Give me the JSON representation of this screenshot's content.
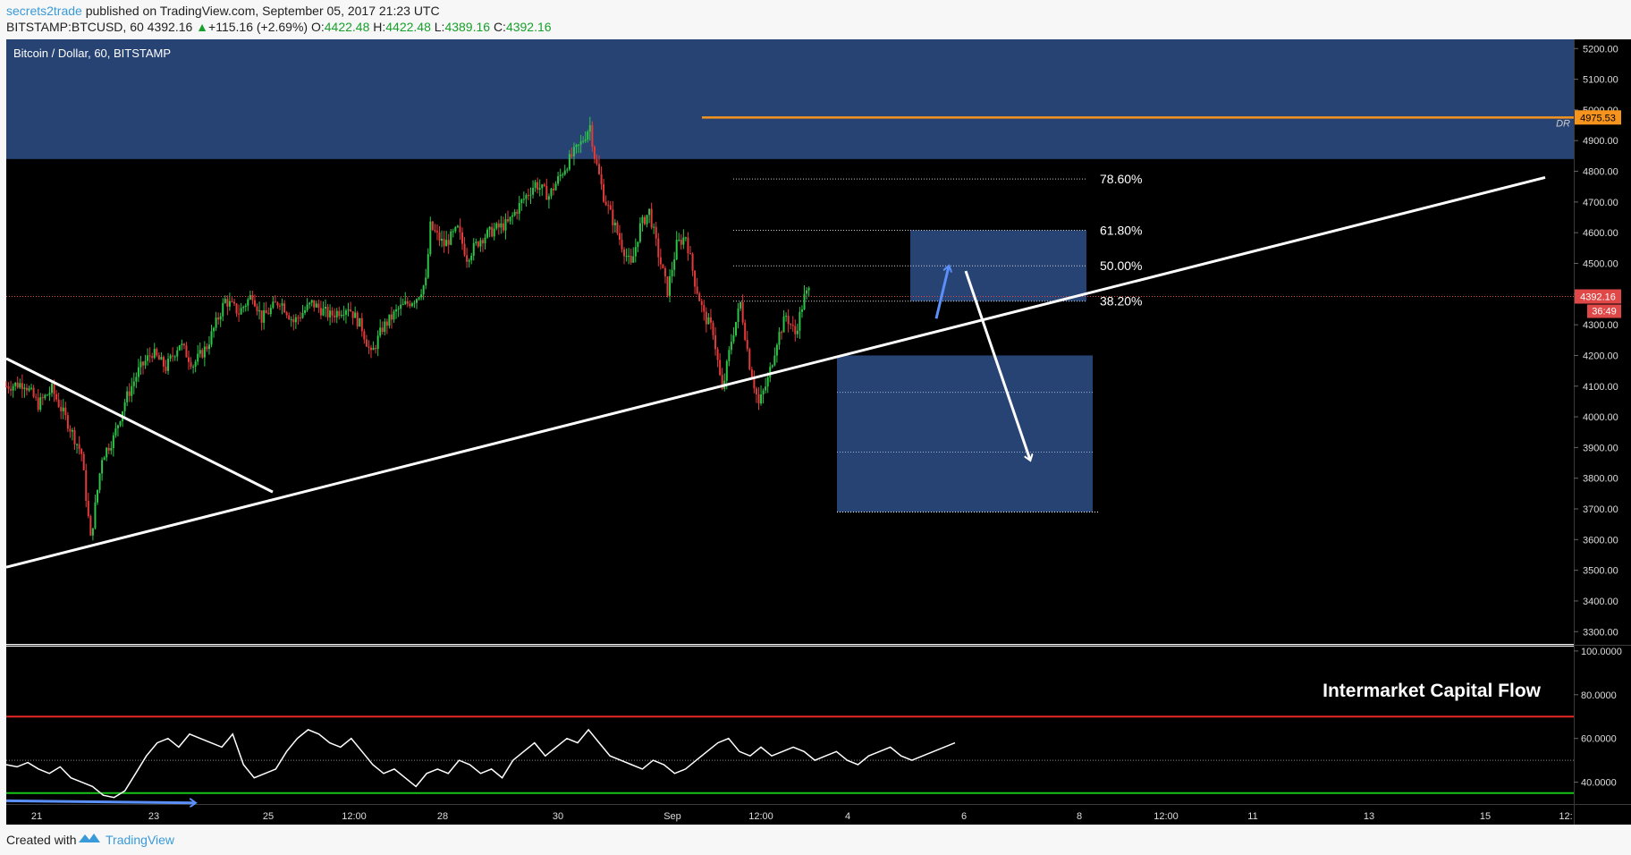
{
  "header": {
    "author": "secrets2trade",
    "published_text": "published on TradingView.com, September 05, 2017 21:23 UTC",
    "symbol": "BITSTAMP:BTCUSD, 60",
    "last": "4392.16",
    "change_arrow": "▲",
    "change": "+115.16 (+2.69%)",
    "o_label": "O:",
    "o_value": "4422.48",
    "h_label": "H:",
    "h_value": "4422.48",
    "l_label": "L:",
    "l_value": "4389.16",
    "c_label": "C:",
    "c_value": "4392.16"
  },
  "footer": {
    "created_with": "Created with",
    "brand": "TradingView"
  },
  "colors": {
    "background": "#000000",
    "zone": "#2a4a80",
    "resistance_line": "#f7941d",
    "support_line": "#17c417",
    "overbought_line": "#e82727",
    "price_badge": "#e04848",
    "blue_arrow": "#5b8ff9",
    "white_lines": "#ffffff"
  },
  "chart_data": [
    {
      "type": "candlestick",
      "title": "Bitcoin / Dollar, 60, BITSTAMP",
      "x_ticks": [
        "21",
        "23",
        "25",
        "12:00",
        "28",
        "30",
        "Sep",
        "12:00",
        "4",
        "6",
        "8",
        "12:00",
        "11",
        "13",
        "15",
        "12:"
      ],
      "y_ticks": [
        "5200.00",
        "5100.00",
        "5000.00",
        "4900.00",
        "4800.00",
        "4700.00",
        "4600.00",
        "4500.00",
        "4400.00",
        "4300.00",
        "4200.00",
        "4100.00",
        "4000.00",
        "3900.00",
        "3800.00",
        "3700.00",
        "3600.00",
        "3500.00",
        "3400.00",
        "3300.00"
      ],
      "ylim": [
        3260,
        5230
      ],
      "last_price": 4392.16,
      "last_price_label": "4392.16",
      "countdown_label": "36:49",
      "resistance_level": 4975.53,
      "resistance_label": "4975.53",
      "resistance_tag": "DR",
      "fibonacci": [
        {
          "label": "78.60%",
          "value": 4775
        },
        {
          "label": "61.80%",
          "value": 4608
        },
        {
          "label": "50.00%",
          "value": 4492
        },
        {
          "label": "38.20%",
          "value": 4377
        }
      ],
      "zones": [
        {
          "name": "supply",
          "from": 4840,
          "to": 5230
        },
        {
          "name": "retracement",
          "from": 4377,
          "to": 4608
        },
        {
          "name": "target",
          "from": 3690,
          "to": 4200
        }
      ],
      "target_box_levels": [
        4080,
        3885
      ],
      "path_points": [
        {
          "t": 0,
          "p": 4100
        },
        {
          "t": 8,
          "p": 4110
        },
        {
          "t": 14,
          "p": 4040
        },
        {
          "t": 20,
          "p": 4090
        },
        {
          "t": 27,
          "p": 3980
        },
        {
          "t": 33,
          "p": 3880
        },
        {
          "t": 37,
          "p": 3600
        },
        {
          "t": 42,
          "p": 3870
        },
        {
          "t": 47,
          "p": 3930
        },
        {
          "t": 52,
          "p": 4050
        },
        {
          "t": 58,
          "p": 4150
        },
        {
          "t": 64,
          "p": 4210
        },
        {
          "t": 70,
          "p": 4160
        },
        {
          "t": 76,
          "p": 4240
        },
        {
          "t": 82,
          "p": 4170
        },
        {
          "t": 88,
          "p": 4230
        },
        {
          "t": 96,
          "p": 4380
        },
        {
          "t": 102,
          "p": 4340
        },
        {
          "t": 108,
          "p": 4400
        },
        {
          "t": 112,
          "p": 4320
        },
        {
          "t": 120,
          "p": 4380
        },
        {
          "t": 126,
          "p": 4310
        },
        {
          "t": 134,
          "p": 4370
        },
        {
          "t": 142,
          "p": 4330
        },
        {
          "t": 150,
          "p": 4360
        },
        {
          "t": 156,
          "p": 4290
        },
        {
          "t": 160,
          "p": 4200
        },
        {
          "t": 165,
          "p": 4290
        },
        {
          "t": 172,
          "p": 4350
        },
        {
          "t": 180,
          "p": 4390
        },
        {
          "t": 184,
          "p": 4440
        },
        {
          "t": 186,
          "p": 4620
        },
        {
          "t": 192,
          "p": 4560
        },
        {
          "t": 198,
          "p": 4610
        },
        {
          "t": 202,
          "p": 4520
        },
        {
          "t": 208,
          "p": 4580
        },
        {
          "t": 214,
          "p": 4610
        },
        {
          "t": 220,
          "p": 4630
        },
        {
          "t": 226,
          "p": 4700
        },
        {
          "t": 232,
          "p": 4760
        },
        {
          "t": 238,
          "p": 4720
        },
        {
          "t": 244,
          "p": 4800
        },
        {
          "t": 248,
          "p": 4850
        },
        {
          "t": 252,
          "p": 4890
        },
        {
          "t": 256,
          "p": 4950
        },
        {
          "t": 258,
          "p": 4850
        },
        {
          "t": 262,
          "p": 4720
        },
        {
          "t": 266,
          "p": 4640
        },
        {
          "t": 270,
          "p": 4560
        },
        {
          "t": 274,
          "p": 4490
        },
        {
          "t": 278,
          "p": 4620
        },
        {
          "t": 282,
          "p": 4670
        },
        {
          "t": 286,
          "p": 4530
        },
        {
          "t": 290,
          "p": 4410
        },
        {
          "t": 294,
          "p": 4560
        },
        {
          "t": 298,
          "p": 4590
        },
        {
          "t": 302,
          "p": 4440
        },
        {
          "t": 306,
          "p": 4330
        },
        {
          "t": 310,
          "p": 4280
        },
        {
          "t": 314,
          "p": 4080
        },
        {
          "t": 318,
          "p": 4250
        },
        {
          "t": 322,
          "p": 4370
        },
        {
          "t": 326,
          "p": 4170
        },
        {
          "t": 330,
          "p": 4040
        },
        {
          "t": 334,
          "p": 4120
        },
        {
          "t": 338,
          "p": 4250
        },
        {
          "t": 342,
          "p": 4330
        },
        {
          "t": 346,
          "p": 4270
        },
        {
          "t": 350,
          "p": 4390
        },
        {
          "t": 352,
          "p": 4410
        }
      ],
      "ohlc_sample": {
        "open": 4422.48,
        "high": 4422.48,
        "low": 4389.16,
        "close": 4392.16
      }
    },
    {
      "type": "line",
      "title": "Intermarket Capital Flow",
      "y_ticks": [
        "100.0000",
        "80.0000",
        "60.0000",
        "40.0000"
      ],
      "ylim": [
        30,
        102
      ],
      "overbought": 70,
      "oversold": 35,
      "midline": 50,
      "values": [
        48,
        47,
        49,
        46,
        44,
        47,
        42,
        40,
        38,
        34,
        33,
        36,
        44,
        52,
        58,
        60,
        56,
        62,
        60,
        58,
        56,
        62,
        48,
        42,
        44,
        46,
        54,
        60,
        64,
        62,
        58,
        56,
        60,
        54,
        48,
        44,
        46,
        42,
        38,
        44,
        46,
        44,
        50,
        48,
        44,
        46,
        42,
        50,
        54,
        58,
        52,
        56,
        60,
        58,
        64,
        58,
        52,
        50,
        48,
        46,
        50,
        48,
        44,
        46,
        50,
        54,
        58,
        60,
        54,
        52,
        56,
        52,
        54,
        56,
        54,
        50,
        52,
        54,
        50,
        48,
        52,
        54,
        56,
        52,
        50,
        52,
        54,
        56,
        58
      ]
    }
  ]
}
